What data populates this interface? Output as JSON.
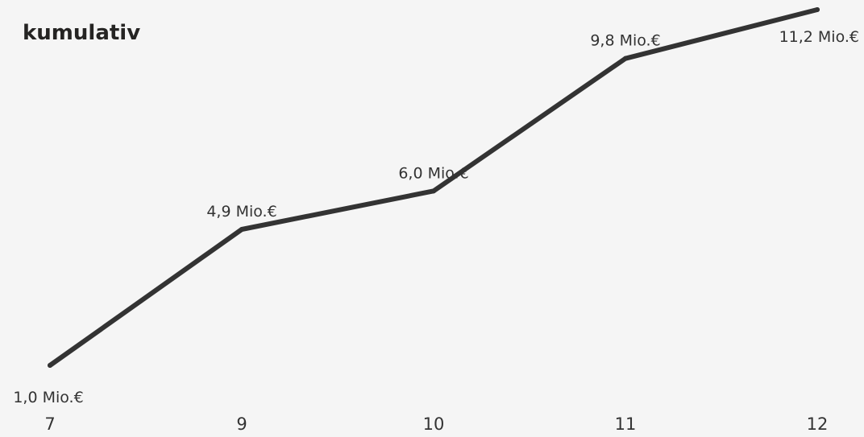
{
  "title": "kumulativ",
  "colors": {
    "background": "#f5f5f5",
    "line": "#333333",
    "title": "#252423"
  },
  "chart_data": {
    "type": "line",
    "title": "kumulativ",
    "xlabel": "",
    "ylabel": "",
    "categories": [
      "7",
      "9",
      "10",
      "11",
      "12"
    ],
    "values": [
      1.0,
      4.9,
      6.0,
      9.8,
      11.2
    ],
    "data_labels": [
      "1,0 Mio.€",
      "4,9 Mio.€",
      "6,0 Mio.€",
      "9,8 Mio.€",
      "11,2 Mio.€"
    ],
    "ylim": [
      1.0,
      11.2
    ],
    "grid": false,
    "legend": "none"
  }
}
